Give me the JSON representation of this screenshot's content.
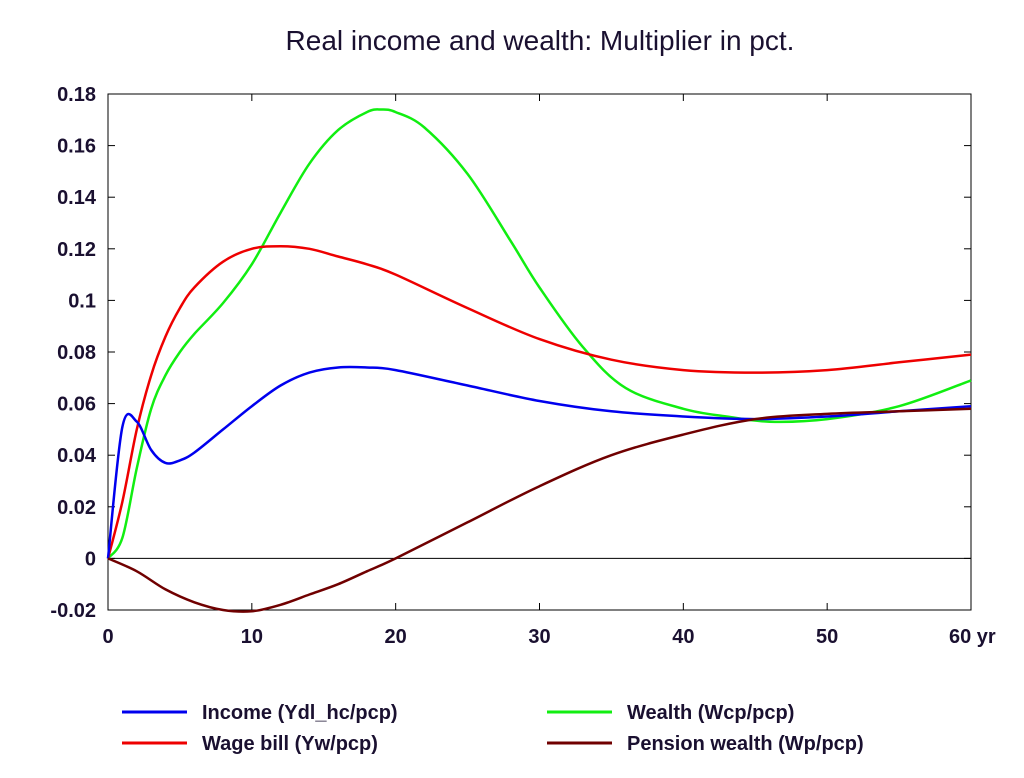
{
  "chart_data": {
    "type": "line",
    "title": "Real income and wealth: Multiplier in pct.",
    "x_unit_label": "yr",
    "xlim": [
      0,
      60
    ],
    "ylim": [
      -0.02,
      0.18
    ],
    "x_ticks": [
      0,
      10,
      20,
      30,
      40,
      50,
      60
    ],
    "x_tick_labels": [
      "0",
      "10",
      "20",
      "30",
      "40",
      "50",
      "60 yr"
    ],
    "y_ticks": [
      -0.02,
      0,
      0.02,
      0.04,
      0.06,
      0.08,
      0.1,
      0.12,
      0.14,
      0.16,
      0.18
    ],
    "y_tick_labels": [
      "-0.02",
      "0",
      "0.02",
      "0.04",
      "0.06",
      "0.08",
      "0.1",
      "0.12",
      "0.14",
      "0.16",
      "0.18"
    ],
    "zero_line": true,
    "grid": false,
    "legend_position": "bottom",
    "series": [
      {
        "name": "Income (Ydl_hc/pcp)",
        "color": "#0000ee",
        "points": [
          [
            0,
            0
          ],
          [
            1,
            0.051
          ],
          [
            2,
            0.053
          ],
          [
            3,
            0.042
          ],
          [
            4,
            0.037
          ],
          [
            5,
            0.038
          ],
          [
            6,
            0.041
          ],
          [
            8,
            0.05
          ],
          [
            10,
            0.059
          ],
          [
            12,
            0.067
          ],
          [
            14,
            0.072
          ],
          [
            16,
            0.074
          ],
          [
            18,
            0.074
          ],
          [
            20,
            0.073
          ],
          [
            25,
            0.067
          ],
          [
            30,
            0.061
          ],
          [
            35,
            0.057
          ],
          [
            40,
            0.055
          ],
          [
            45,
            0.054
          ],
          [
            50,
            0.055
          ],
          [
            55,
            0.057
          ],
          [
            60,
            0.059
          ]
        ]
      },
      {
        "name": "Wage bill (Yw/pcp)",
        "color": "#ee0000",
        "points": [
          [
            0,
            0
          ],
          [
            1,
            0.022
          ],
          [
            2,
            0.05
          ],
          [
            3,
            0.071
          ],
          [
            4,
            0.086
          ],
          [
            5,
            0.097
          ],
          [
            6,
            0.105
          ],
          [
            8,
            0.115
          ],
          [
            10,
            0.12
          ],
          [
            12,
            0.121
          ],
          [
            14,
            0.12
          ],
          [
            16,
            0.117
          ],
          [
            18,
            0.114
          ],
          [
            20,
            0.11
          ],
          [
            25,
            0.097
          ],
          [
            30,
            0.085
          ],
          [
            35,
            0.077
          ],
          [
            40,
            0.073
          ],
          [
            45,
            0.072
          ],
          [
            50,
            0.073
          ],
          [
            55,
            0.076
          ],
          [
            60,
            0.079
          ]
        ]
      },
      {
        "name": "Wealth (Wcp/pcp)",
        "color": "#11ee11",
        "points": [
          [
            0,
            0
          ],
          [
            1,
            0.008
          ],
          [
            2,
            0.035
          ],
          [
            3,
            0.058
          ],
          [
            4,
            0.071
          ],
          [
            5,
            0.08
          ],
          [
            6,
            0.087
          ],
          [
            8,
            0.099
          ],
          [
            10,
            0.114
          ],
          [
            12,
            0.134
          ],
          [
            14,
            0.153
          ],
          [
            16,
            0.166
          ],
          [
            18,
            0.173
          ],
          [
            19,
            0.174
          ],
          [
            20,
            0.173
          ],
          [
            22,
            0.167
          ],
          [
            25,
            0.149
          ],
          [
            28,
            0.123
          ],
          [
            30,
            0.105
          ],
          [
            33,
            0.082
          ],
          [
            36,
            0.066
          ],
          [
            40,
            0.058
          ],
          [
            43,
            0.055
          ],
          [
            46,
            0.053
          ],
          [
            50,
            0.054
          ],
          [
            55,
            0.059
          ],
          [
            60,
            0.069
          ]
        ]
      },
      {
        "name": "Pension wealth (Wp/pcp)",
        "color": "#700000",
        "points": [
          [
            0,
            0
          ],
          [
            2,
            -0.005
          ],
          [
            4,
            -0.012
          ],
          [
            6,
            -0.017
          ],
          [
            8,
            -0.02
          ],
          [
            10,
            -0.0205
          ],
          [
            12,
            -0.018
          ],
          [
            14,
            -0.014
          ],
          [
            16,
            -0.01
          ],
          [
            18,
            -0.005
          ],
          [
            20,
            0.0
          ],
          [
            25,
            0.014
          ],
          [
            30,
            0.028
          ],
          [
            35,
            0.04
          ],
          [
            40,
            0.048
          ],
          [
            45,
            0.054
          ],
          [
            50,
            0.056
          ],
          [
            55,
            0.057
          ],
          [
            60,
            0.058
          ]
        ]
      }
    ]
  }
}
